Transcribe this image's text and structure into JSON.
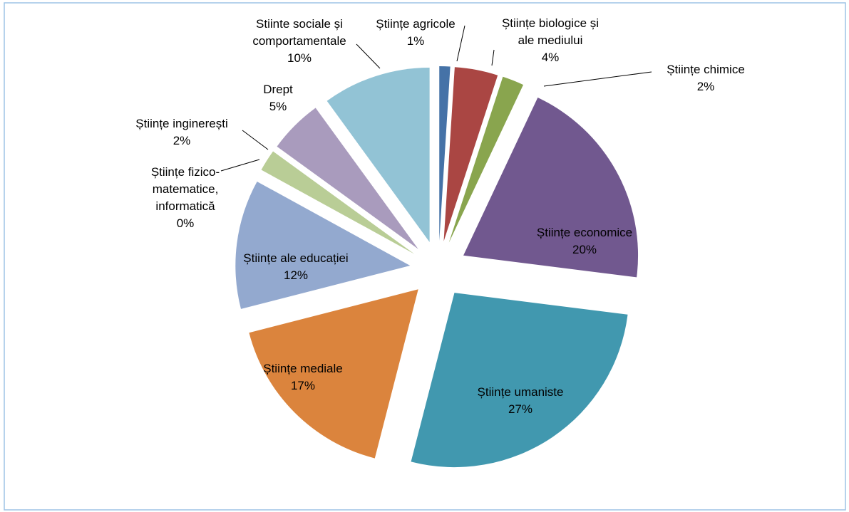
{
  "chart_data": {
    "type": "pie",
    "categories": [
      "Științe agricole",
      "Științe biologice și\nale mediului",
      "Științe chimice",
      "Științe economice",
      "Științe umaniste",
      "Științe mediale",
      "Științe ale educației",
      "Științe fizico-\nmatematice,\ninformatică",
      "Științe inginerești",
      "Drept",
      "Stiinte sociale și\ncomportamentale"
    ],
    "values": [
      1,
      4,
      2,
      20,
      27,
      17,
      12,
      0,
      2,
      5,
      10
    ],
    "value_labels": [
      "1%",
      "4%",
      "2%",
      "20%",
      "27%",
      "17%",
      "12%",
      "0%",
      "2%",
      "5%",
      "10%"
    ],
    "colors": [
      "#4572a7",
      "#aa4643",
      "#89a54e",
      "#71588f",
      "#4198af",
      "#db843d",
      "#93a9cf",
      "#d19392",
      "#b9cd96",
      "#a99bbd",
      "#92c3d5"
    ]
  }
}
